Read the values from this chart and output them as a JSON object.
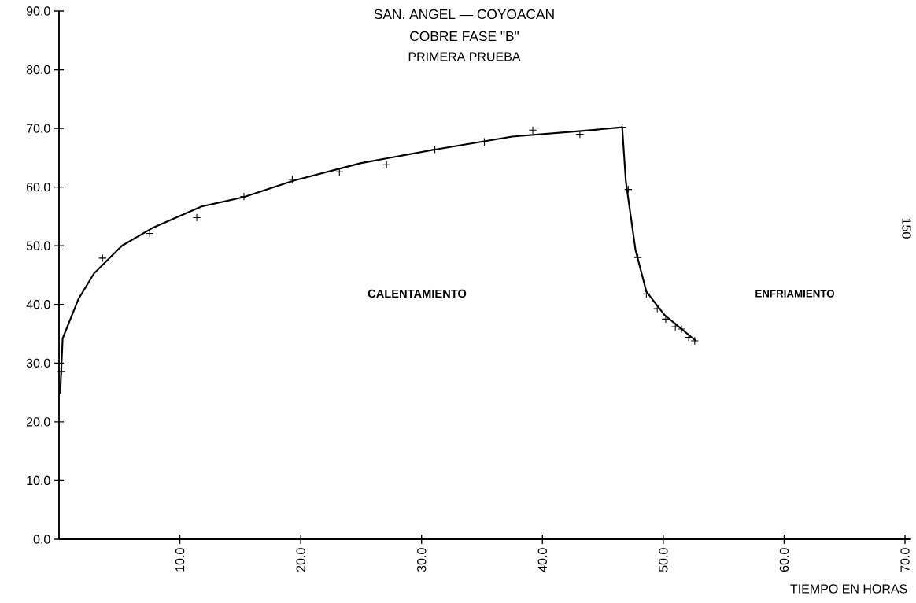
{
  "chart_data": {
    "type": "line",
    "title": "SAN. ANGEL — COYOACAN",
    "subtitle": "COBRE FASE \"B\"",
    "xlabel": "TIEMPO EN HORAS",
    "annotations": [
      "PRIMERA PRUEBA",
      "CALENTAMIENTO",
      "ENFRIAMIENTO",
      "150"
    ],
    "xlim": [
      0,
      70.5
    ],
    "ylim": [
      0,
      90
    ],
    "xticks": [
      {
        "value": 10,
        "label": "10.0"
      },
      {
        "value": 20,
        "label": "20.0"
      },
      {
        "value": 30,
        "label": "30.0"
      },
      {
        "value": 40,
        "label": "40.0"
      },
      {
        "value": 50,
        "label": "50.0"
      },
      {
        "value": 60,
        "label": "60.0"
      },
      {
        "value": 70,
        "label": "70.0"
      }
    ],
    "yticks": [
      {
        "value": 0,
        "label": "0.0"
      },
      {
        "value": 10,
        "label": "10.0"
      },
      {
        "value": 20,
        "label": "20.0"
      },
      {
        "value": 30,
        "label": "30.0"
      },
      {
        "value": 40,
        "label": "40.0"
      },
      {
        "value": 50,
        "label": "50.0"
      },
      {
        "value": 60,
        "label": "60.0"
      },
      {
        "value": 70,
        "label": "70.0"
      },
      {
        "value": 80,
        "label": "80.0"
      },
      {
        "value": 90,
        "label": "90.0"
      }
    ],
    "series": [
      {
        "type": "scatter",
        "marker": "cross",
        "color": "#000000",
        "x": [
          0.2,
          3.6,
          7.5,
          11.4,
          15.3,
          19.3,
          23.2,
          27.1,
          31.1,
          35.2,
          39.2,
          43.1,
          46.6,
          47.1,
          47.9,
          48.6,
          49.5,
          50.2,
          51.0,
          51.5,
          52.1,
          52.6
        ],
        "values": [
          28.6,
          47.9,
          52.1,
          54.8,
          58.4,
          61.3,
          62.6,
          63.8,
          66.4,
          67.7,
          69.7,
          69.0,
          70.2,
          59.6,
          48.0,
          41.8,
          39.3,
          37.5,
          36.2,
          35.8,
          34.4,
          33.8
        ]
      },
      {
        "marker": "none",
        "color": "#000000",
        "x": [
          0.1,
          0.3,
          1.6,
          2.9,
          5.2,
          7.7,
          11.8,
          15.3,
          19.4,
          25.0,
          31.1,
          37.5,
          44.0,
          46.6,
          46.9,
          47.7,
          48.6,
          50.1,
          52.7
        ],
        "values": [
          24.8,
          34.2,
          40.9,
          45.3,
          50.0,
          53.0,
          56.7,
          58.3,
          61.1,
          64.1,
          66.4,
          68.6,
          69.7,
          70.2,
          61.0,
          49.3,
          42.2,
          38.2,
          33.8
        ]
      }
    ]
  }
}
